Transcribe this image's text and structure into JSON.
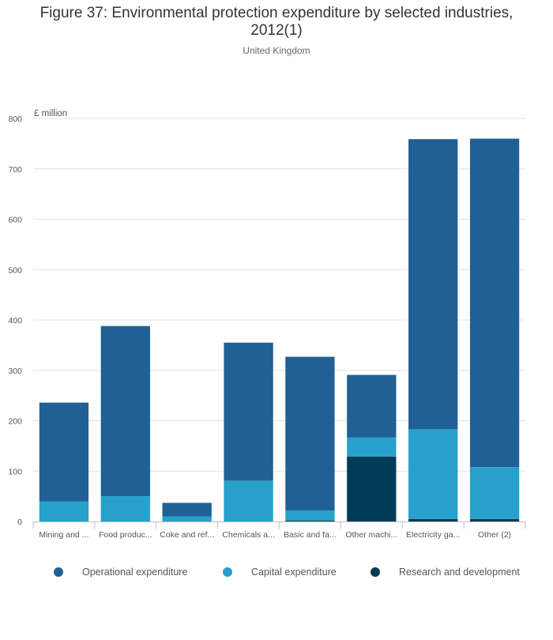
{
  "chart_data": {
    "type": "bar",
    "stacked": true,
    "title": "Figure 37: Environmental protection expenditure by selected industries, 2012(1)",
    "subtitle": "United Kingdom",
    "ylabel": "£ million",
    "xlabel": "",
    "ylim": [
      0,
      800
    ],
    "yticks": [
      0,
      100,
      200,
      300,
      400,
      500,
      600,
      700,
      800
    ],
    "grid": true,
    "legend_position": "bottom",
    "categories": [
      "Mining and ...",
      "Food produc...",
      "Coke and ref...",
      "Chemicals a...",
      "Basic and fa...",
      "Other machi...",
      "Electricity ga...",
      "Other (2)"
    ],
    "series": [
      {
        "name": "Research and development",
        "color": "#003c57",
        "values": [
          0,
          0,
          0,
          0,
          2,
          129,
          5,
          5
        ]
      },
      {
        "name": "Capital expenditure",
        "color": "#27a0cc",
        "values": [
          40,
          50,
          10,
          81,
          20,
          38,
          178,
          103
        ]
      },
      {
        "name": "Operational expenditure",
        "color": "#206095",
        "values": [
          196,
          338,
          27,
          274,
          305,
          124,
          576,
          652
        ]
      }
    ],
    "legend_order": [
      "Operational expenditure",
      "Capital expenditure",
      "Research and development"
    ]
  }
}
